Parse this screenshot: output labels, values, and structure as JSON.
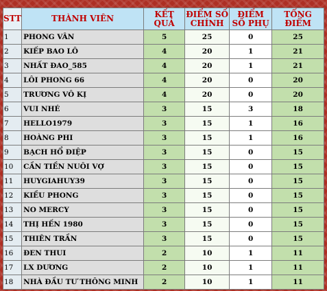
{
  "columns": {
    "stt": "STT",
    "member": "THÀNH VIÊN",
    "result": "KẾT QUẢ",
    "main_score": "ĐIỂM SỐ CHÍNH",
    "sub_score": "ĐIỂM SỐ PHỤ",
    "total": "TỔNG ĐIỂM"
  },
  "rows": [
    {
      "stt": "1",
      "name": "PHONG VÂN",
      "result": "5",
      "main": "25",
      "sub": "0",
      "total": "25"
    },
    {
      "stt": "2",
      "name": "KIẾP BAO LÔ",
      "result": "4",
      "main": "20",
      "sub": "1",
      "total": "21"
    },
    {
      "stt": "3",
      "name": "NHẤT ĐAO_585",
      "result": "4",
      "main": "20",
      "sub": "1",
      "total": "21"
    },
    {
      "stt": "4",
      "name": "LÔI PHONG 66",
      "result": "4",
      "main": "20",
      "sub": "0",
      "total": "20"
    },
    {
      "stt": "5",
      "name": "TRƯƠNG VÔ KỊ",
      "result": "4",
      "main": "20",
      "sub": "0",
      "total": "20"
    },
    {
      "stt": "6",
      "name": "VUI NHÉ",
      "result": "3",
      "main": "15",
      "sub": "3",
      "total": "18"
    },
    {
      "stt": "7",
      "name": "HELLO1979",
      "result": "3",
      "main": "15",
      "sub": "1",
      "total": "16"
    },
    {
      "stt": "8",
      "name": "HOÀNG PHI",
      "result": "3",
      "main": "15",
      "sub": "1",
      "total": "16"
    },
    {
      "stt": "9",
      "name": "BẠCH HỔ ĐIỆP",
      "result": "3",
      "main": "15",
      "sub": "0",
      "total": "15"
    },
    {
      "stt": "10",
      "name": "CẦN TIỀN NUÔI VỢ",
      "result": "3",
      "main": "15",
      "sub": "0",
      "total": "15"
    },
    {
      "stt": "11",
      "name": "HUYGIAHUY39",
      "result": "3",
      "main": "15",
      "sub": "0",
      "total": "15"
    },
    {
      "stt": "12",
      "name": "KIỀU PHONG",
      "result": "3",
      "main": "15",
      "sub": "0",
      "total": "15"
    },
    {
      "stt": "13",
      "name": "NO MERCY",
      "result": "3",
      "main": "15",
      "sub": "0",
      "total": "15"
    },
    {
      "stt": "14",
      "name": "THỊ HẾN 1980",
      "result": "3",
      "main": "15",
      "sub": "0",
      "total": "15"
    },
    {
      "stt": "15",
      "name": "THIÊN TRẦN",
      "result": "3",
      "main": "15",
      "sub": "0",
      "total": "15"
    },
    {
      "stt": "16",
      "name": "ĐEN THUI",
      "result": "2",
      "main": "10",
      "sub": "1",
      "total": "11"
    },
    {
      "stt": "17",
      "name": "LX DƯƠNG",
      "result": "2",
      "main": "10",
      "sub": "1",
      "total": "11"
    },
    {
      "stt": "18",
      "name": "NHÀ ĐẦU TƯ THÔNG MINH",
      "result": "2",
      "main": "10",
      "sub": "1",
      "total": "11"
    }
  ]
}
